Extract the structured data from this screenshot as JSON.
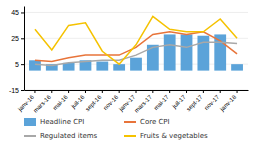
{
  "chart_data": {
    "type": "bar",
    "categories": [
      "janv-16",
      "mars-16",
      "mai-16",
      "juil-16",
      "sept-16",
      "nov-16",
      "janv-17",
      "mars-17",
      "mai-17",
      "juil-17",
      "sept-17",
      "nov-17",
      "janv-18"
    ],
    "series": [
      {
        "name": "Headline CPI",
        "type": "bar",
        "color": "#5BA3D9",
        "values": [
          8,
          5,
          6,
          8,
          7,
          5,
          10,
          20,
          28,
          28,
          27,
          28,
          5
        ]
      },
      {
        "name": "Core CPI",
        "type": "line",
        "color": "#E8743A",
        "values": [
          8,
          7,
          10,
          12,
          12,
          12,
          18,
          28,
          30,
          28,
          30,
          23,
          13
        ]
      },
      {
        "name": "Regulated items",
        "type": "line",
        "color": "#A8A8A8",
        "values": [
          5,
          4,
          6,
          7,
          8,
          8,
          12,
          18,
          20,
          18,
          22,
          22,
          21
        ]
      },
      {
        "name": "Fruits & vegetables",
        "type": "line",
        "color": "#F5C200",
        "values": [
          32,
          16,
          35,
          37,
          15,
          5,
          20,
          42,
          32,
          30,
          30,
          40,
          25
        ]
      }
    ],
    "ylim": [
      -15,
      50
    ],
    "yticks": [
      -15,
      5,
      25,
      45
    ],
    "grid": true,
    "legend": "bottom"
  }
}
